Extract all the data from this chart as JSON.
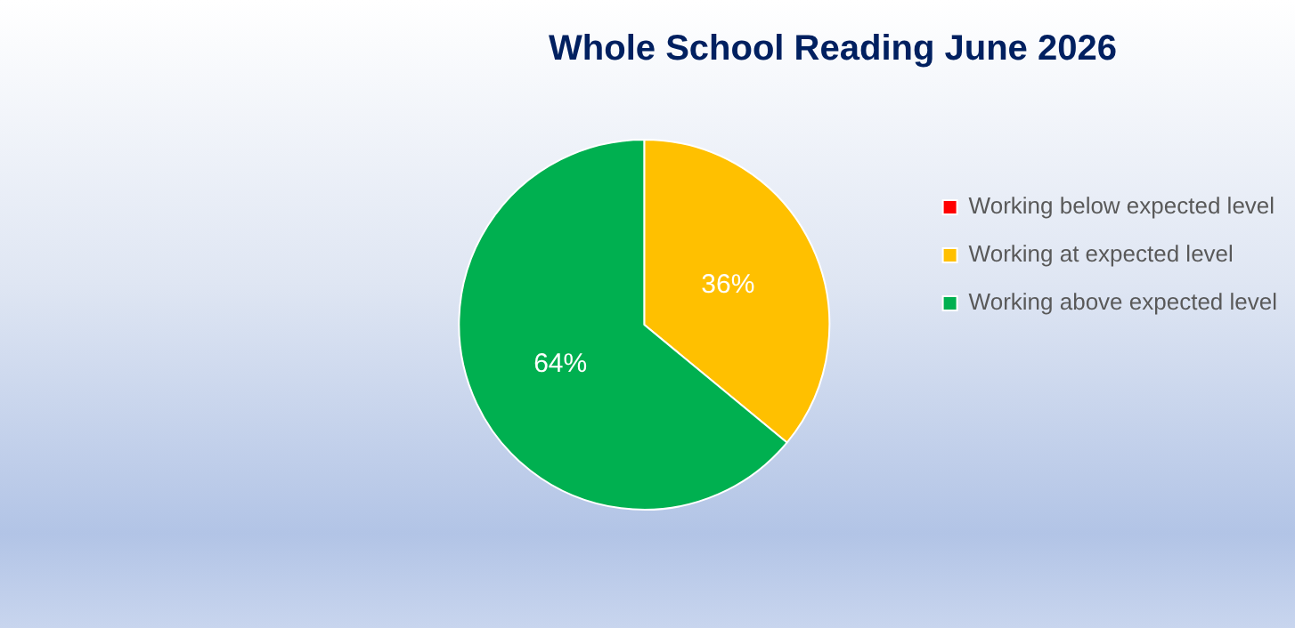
{
  "chart_data": {
    "type": "pie",
    "title": "Whole School Reading June 2026",
    "categories": [
      "Working below expected level",
      "Working at expected level",
      "Working above expected level"
    ],
    "values": [
      0,
      36,
      64
    ],
    "colors": [
      "#ff0000",
      "#ffc000",
      "#00b050"
    ],
    "value_labels": [
      null,
      "36%",
      "64%"
    ],
    "legend": "right"
  }
}
